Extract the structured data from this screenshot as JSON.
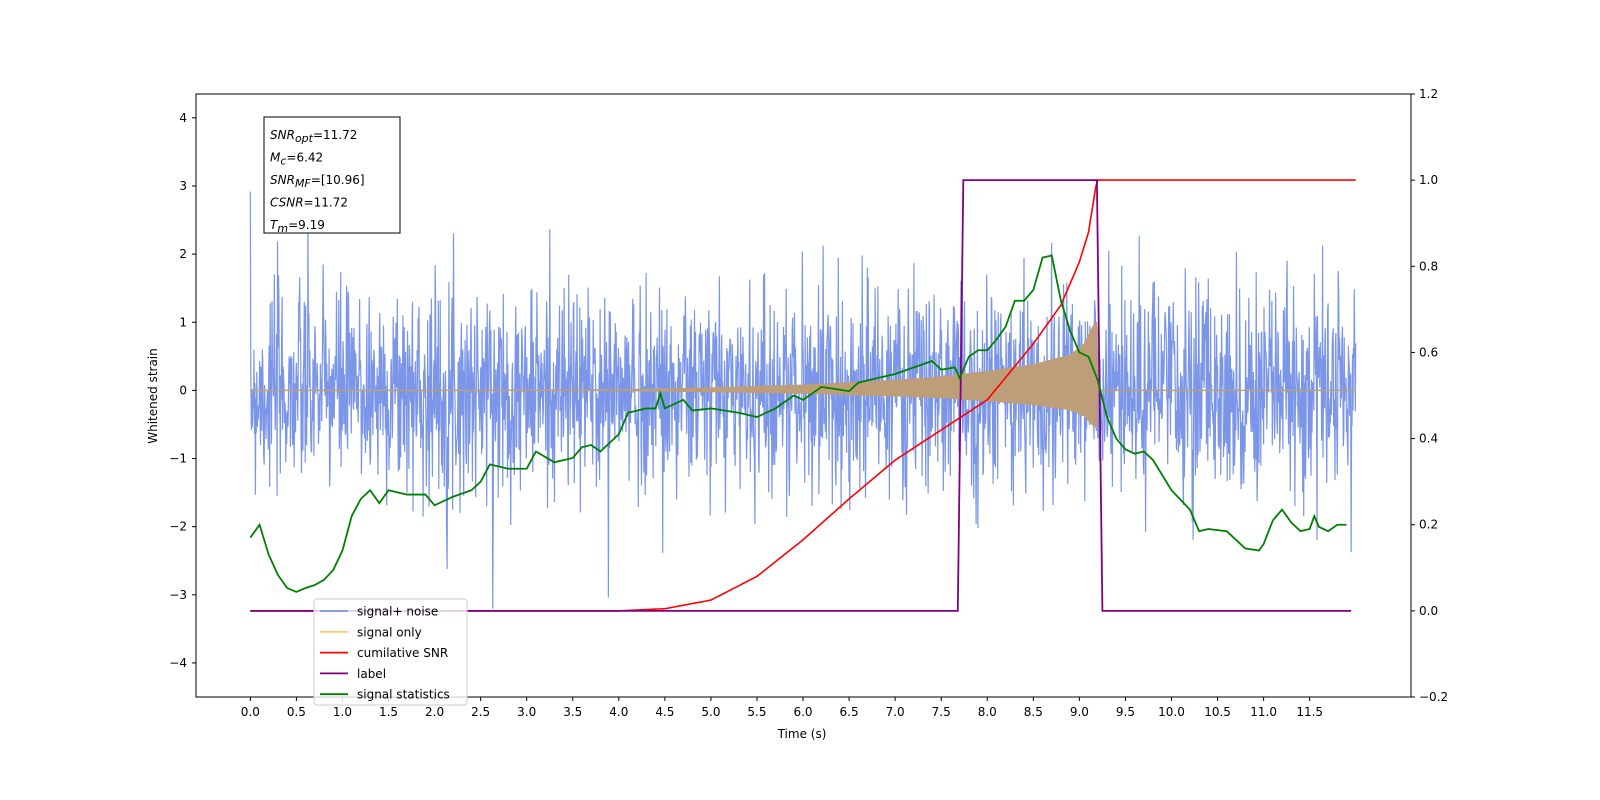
{
  "chart_data": {
    "type": "line",
    "xlabel": "Time (s)",
    "ylabel": "Whitened strain",
    "xlim": [
      -0.59,
      12.6
    ],
    "ylim": [
      -4.5,
      4.35
    ],
    "ylim_right": [
      -0.2,
      1.2
    ],
    "x_ticks": [
      "0.0",
      "0.5",
      "1.0",
      "1.5",
      "2.0",
      "2.5",
      "3.0",
      "3.5",
      "4.0",
      "4.5",
      "5.0",
      "5.5",
      "6.0",
      "6.5",
      "7.0",
      "7.5",
      "8.0",
      "8.5",
      "9.0",
      "9.5",
      "10.0",
      "10.5",
      "11.0",
      "11.5"
    ],
    "y_ticks": [
      "4",
      "3",
      "2",
      "1",
      "0",
      "−1",
      "−2",
      "−3",
      "−4"
    ],
    "y_ticks_right": [
      "1.2",
      "1.0",
      "0.8",
      "0.6",
      "0.4",
      "0.2",
      "0.0",
      "−0.2"
    ],
    "annotation": {
      "lines": [
        {
          "base": "SNR",
          "sub": "opt",
          "value": "=11.72"
        },
        {
          "base": "M",
          "sub": "c",
          "value": "=6.42"
        },
        {
          "base": "SNR",
          "sub": "MF",
          "value": "=[10.96]"
        },
        {
          "base": "CSNR",
          "sub": "",
          "value": "=11.72"
        },
        {
          "base": "T",
          "sub": "m",
          "value": "=9.19"
        }
      ]
    },
    "legend": {
      "placement": "lower-left",
      "entries": [
        {
          "label": "signal+ noise",
          "color": "#7b96e8"
        },
        {
          "label": "signal only",
          "color": "#ffc87a"
        },
        {
          "label": "cumilative SNR",
          "color": "#ff0000"
        },
        {
          "label": "label",
          "color": "#800080"
        },
        {
          "label": "signal statistics",
          "color": "#008000"
        }
      ]
    },
    "series": [
      {
        "name": "signal+ noise",
        "axis": "left",
        "color": "#7b96e8",
        "t_range": [
          0,
          12.0
        ],
        "noise_std": 0.75,
        "samples": 2400,
        "seed": 7
      },
      {
        "name": "signal only",
        "axis": "left",
        "color": "#bd9e78",
        "envelope_t": [
          0,
          4.0,
          5.0,
          6.0,
          7.0,
          7.5,
          8.0,
          8.5,
          8.9,
          9.05,
          9.15,
          9.19,
          9.2,
          12.0
        ],
        "envelope_a": [
          0,
          0.01,
          0.04,
          0.08,
          0.15,
          0.2,
          0.28,
          0.38,
          0.52,
          0.68,
          0.95,
          1.0,
          0,
          0
        ]
      },
      {
        "name": "cumilative SNR",
        "axis": "right",
        "color": "#ff0000",
        "t": [
          0,
          4.0,
          4.5,
          5.0,
          5.5,
          6.0,
          6.5,
          7.0,
          7.5,
          8.0,
          8.5,
          8.8,
          9.0,
          9.1,
          9.19,
          12.0
        ],
        "y": [
          0,
          0,
          0.005,
          0.025,
          0.08,
          0.165,
          0.26,
          0.35,
          0.42,
          0.49,
          0.62,
          0.71,
          0.81,
          0.88,
          1.0,
          1.0
        ]
      },
      {
        "name": "label",
        "axis": "right",
        "color": "#800080",
        "t": [
          0,
          7.68,
          7.74,
          9.19,
          9.25,
          11.95
        ],
        "y": [
          0,
          0,
          1,
          1,
          0,
          0
        ]
      },
      {
        "name": "signal statistics",
        "axis": "right",
        "color": "#008000",
        "t": [
          0,
          0.1,
          0.2,
          0.3,
          0.4,
          0.5,
          0.6,
          0.7,
          0.8,
          0.9,
          1.0,
          1.1,
          1.2,
          1.3,
          1.4,
          1.5,
          1.7,
          1.9,
          2.0,
          2.2,
          2.4,
          2.5,
          2.6,
          2.8,
          3.0,
          3.1,
          3.3,
          3.5,
          3.6,
          3.7,
          3.8,
          4.0,
          4.1,
          4.3,
          4.4,
          4.45,
          4.5,
          4.7,
          4.8,
          5.0,
          5.3,
          5.5,
          5.7,
          5.9,
          6.0,
          6.2,
          6.5,
          6.6,
          6.8,
          7.0,
          7.2,
          7.4,
          7.5,
          7.65,
          7.7,
          7.8,
          7.9,
          8.0,
          8.1,
          8.2,
          8.3,
          8.4,
          8.5,
          8.6,
          8.7,
          8.8,
          8.9,
          9.0,
          9.1,
          9.2,
          9.3,
          9.4,
          9.5,
          9.6,
          9.7,
          9.8,
          10.0,
          10.2,
          10.3,
          10.4,
          10.6,
          10.7,
          10.8,
          10.95,
          11.0,
          11.1,
          11.2,
          11.3,
          11.4,
          11.5,
          11.55,
          11.6,
          11.7,
          11.8,
          11.9
        ],
        "y": [
          0.17,
          0.2,
          0.13,
          0.083,
          0.053,
          0.044,
          0.053,
          0.06,
          0.072,
          0.095,
          0.14,
          0.22,
          0.26,
          0.28,
          0.25,
          0.28,
          0.27,
          0.27,
          0.245,
          0.265,
          0.28,
          0.3,
          0.34,
          0.33,
          0.33,
          0.37,
          0.345,
          0.355,
          0.38,
          0.385,
          0.37,
          0.41,
          0.46,
          0.47,
          0.47,
          0.505,
          0.47,
          0.49,
          0.465,
          0.47,
          0.46,
          0.45,
          0.47,
          0.5,
          0.49,
          0.52,
          0.51,
          0.53,
          0.54,
          0.55,
          0.565,
          0.58,
          0.56,
          0.565,
          0.54,
          0.59,
          0.605,
          0.605,
          0.63,
          0.66,
          0.72,
          0.72,
          0.745,
          0.82,
          0.825,
          0.72,
          0.65,
          0.6,
          0.59,
          0.535,
          0.45,
          0.4,
          0.375,
          0.365,
          0.37,
          0.35,
          0.28,
          0.235,
          0.185,
          0.19,
          0.185,
          0.165,
          0.145,
          0.14,
          0.155,
          0.21,
          0.235,
          0.205,
          0.185,
          0.19,
          0.22,
          0.195,
          0.185,
          0.2,
          0.2
        ]
      }
    ]
  }
}
